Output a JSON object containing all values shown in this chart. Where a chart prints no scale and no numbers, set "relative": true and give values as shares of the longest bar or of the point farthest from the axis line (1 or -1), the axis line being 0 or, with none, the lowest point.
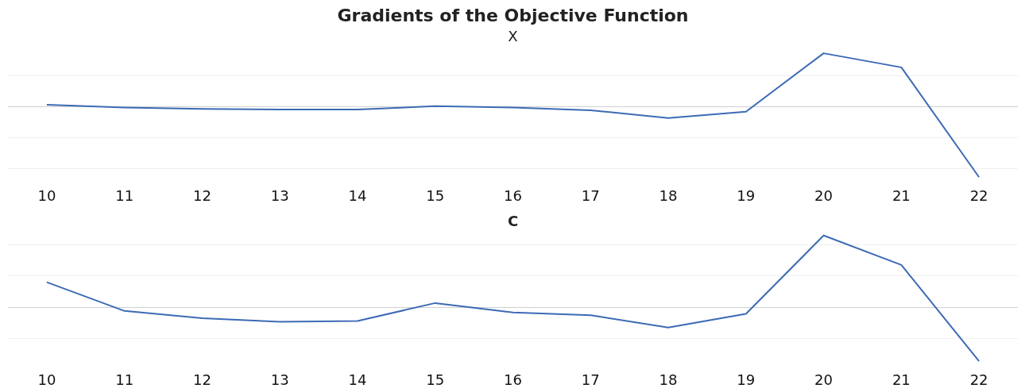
{
  "chart_data": [
    {
      "type": "line",
      "title": "Gradients of the Objective Function",
      "subtitle": "X",
      "relative": true,
      "grid": "y",
      "legend": false,
      "categories": [
        "10",
        "11",
        "12",
        "13",
        "14",
        "15",
        "16",
        "17",
        "18",
        "19",
        "20",
        "21",
        "22"
      ],
      "series": [
        {
          "color": "#3d6ab5",
          "values": [
            0.03,
            -0.01,
            -0.03,
            -0.04,
            -0.04,
            0.01,
            -0.01,
            -0.05,
            -0.16,
            -0.07,
            0.76,
            0.56,
            -1
          ]
        }
      ]
    },
    {
      "type": "line",
      "title": "C",
      "relative": true,
      "grid": "y",
      "legend": false,
      "categories": [
        "10",
        "11",
        "12",
        "13",
        "14",
        "15",
        "16",
        "17",
        "18",
        "19",
        "20",
        "21",
        "22"
      ],
      "series": [
        {
          "color": "#3d6ab5",
          "values": [
            0.35,
            -0.05,
            -0.15,
            -0.2,
            -0.19,
            0.06,
            -0.07,
            -0.11,
            -0.28,
            -0.09,
            1,
            0.59,
            -0.75
          ]
        }
      ]
    }
  ]
}
